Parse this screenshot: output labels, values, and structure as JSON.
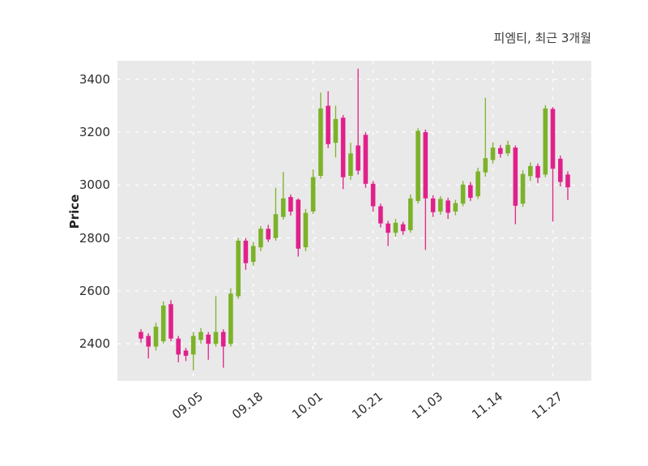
{
  "header": {
    "title": "피엠티, 최근 3개월"
  },
  "chart_data": {
    "type": "candlestick",
    "title": "피엠티, 최근 3개월",
    "ylabel": "Price",
    "ylim": [
      2260,
      3470
    ],
    "yticks": [
      2400,
      2600,
      2800,
      3000,
      3200,
      3400
    ],
    "xtick_labels": [
      "09.05",
      "09.18",
      "10.01",
      "10.21",
      "11.03",
      "11.14",
      "11.27"
    ],
    "xtick_indices": [
      7,
      15,
      23,
      31,
      39,
      47,
      55
    ],
    "grid": "white-dashed",
    "legend": "none",
    "colors": {
      "up": "#7cb229",
      "down": "#e0218a",
      "plot_bg": "#e9e9e9",
      "grid": "#ffffff",
      "text": "#2e2e2e"
    },
    "candles_format": [
      "open",
      "high",
      "low",
      "close"
    ],
    "candles": [
      [
        2445,
        2455,
        2405,
        2420
      ],
      [
        2430,
        2440,
        2345,
        2390
      ],
      [
        2390,
        2480,
        2375,
        2465
      ],
      [
        2410,
        2560,
        2400,
        2545
      ],
      [
        2550,
        2565,
        2410,
        2420
      ],
      [
        2420,
        2430,
        2330,
        2360
      ],
      [
        2375,
        2385,
        2335,
        2355
      ],
      [
        2360,
        2445,
        2300,
        2430
      ],
      [
        2415,
        2460,
        2400,
        2445
      ],
      [
        2435,
        2445,
        2340,
        2400
      ],
      [
        2400,
        2580,
        2390,
        2445
      ],
      [
        2445,
        2455,
        2310,
        2390
      ],
      [
        2400,
        2610,
        2390,
        2590
      ],
      [
        2580,
        2800,
        2570,
        2790
      ],
      [
        2790,
        2800,
        2680,
        2705
      ],
      [
        2710,
        2785,
        2695,
        2770
      ],
      [
        2765,
        2845,
        2750,
        2835
      ],
      [
        2835,
        2850,
        2785,
        2795
      ],
      [
        2800,
        2990,
        2790,
        2890
      ],
      [
        2880,
        3050,
        2870,
        2950
      ],
      [
        2955,
        2965,
        2885,
        2900
      ],
      [
        2945,
        2950,
        2730,
        2760
      ],
      [
        2765,
        2910,
        2750,
        2895
      ],
      [
        2900,
        3060,
        2890,
        3030
      ],
      [
        3035,
        3350,
        3025,
        3290
      ],
      [
        3300,
        3355,
        3140,
        3155
      ],
      [
        3160,
        3300,
        3105,
        3250
      ],
      [
        3255,
        3265,
        2985,
        3030
      ],
      [
        3035,
        3160,
        3020,
        3120
      ],
      [
        3150,
        3440,
        3040,
        3055
      ],
      [
        3190,
        3200,
        2990,
        3005
      ],
      [
        3005,
        3015,
        2900,
        2920
      ],
      [
        2920,
        2930,
        2840,
        2855
      ],
      [
        2855,
        2865,
        2770,
        2820
      ],
      [
        2820,
        2872,
        2805,
        2858
      ],
      [
        2852,
        2862,
        2812,
        2826
      ],
      [
        2830,
        2965,
        2820,
        2950
      ],
      [
        2940,
        3215,
        2930,
        3205
      ],
      [
        3200,
        3210,
        2755,
        2950
      ],
      [
        2950,
        2962,
        2880,
        2898
      ],
      [
        2900,
        2958,
        2888,
        2948
      ],
      [
        2942,
        2952,
        2872,
        2896
      ],
      [
        2900,
        2944,
        2886,
        2932
      ],
      [
        2930,
        3016,
        2920,
        3002
      ],
      [
        3000,
        3012,
        2940,
        2952
      ],
      [
        2958,
        3066,
        2948,
        3052
      ],
      [
        3048,
        3330,
        3032,
        3102
      ],
      [
        3095,
        3162,
        3082,
        3142
      ],
      [
        3140,
        3152,
        3104,
        3118
      ],
      [
        3120,
        3168,
        3110,
        3152
      ],
      [
        3142,
        3150,
        2852,
        2922
      ],
      [
        2930,
        3056,
        2918,
        3042
      ],
      [
        3034,
        3086,
        3016,
        3072
      ],
      [
        3072,
        3082,
        3008,
        3028
      ],
      [
        3040,
        3302,
        3030,
        3290
      ],
      [
        3288,
        3295,
        2862,
        3062
      ],
      [
        3100,
        3112,
        2995,
        3012
      ],
      [
        3040,
        3052,
        2944,
        2992
      ]
    ]
  }
}
